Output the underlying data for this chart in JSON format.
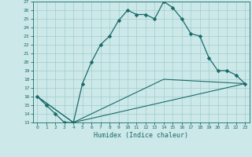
{
  "xlabel": "Humidex (Indice chaleur)",
  "xlim": [
    -0.5,
    23.5
  ],
  "ylim": [
    13,
    27
  ],
  "yticks": [
    13,
    14,
    15,
    16,
    17,
    18,
    19,
    20,
    21,
    22,
    23,
    24,
    25,
    26,
    27
  ],
  "xticks": [
    0,
    1,
    2,
    3,
    4,
    5,
    6,
    7,
    8,
    9,
    10,
    11,
    12,
    13,
    14,
    15,
    16,
    17,
    18,
    19,
    20,
    21,
    22,
    23
  ],
  "background_color": "#cde8e8",
  "grid_color": "#9fcece",
  "line_color": "#1a6b6b",
  "line1_x": [
    0,
    1,
    2,
    3,
    4,
    5,
    6,
    7,
    8,
    9,
    10,
    11,
    12,
    13,
    14,
    15,
    16,
    17,
    18,
    19,
    20,
    21,
    22,
    23
  ],
  "line1_y": [
    16,
    15,
    14,
    13,
    13,
    17.5,
    20,
    22,
    23,
    24.8,
    26,
    25.5,
    25.5,
    25,
    27,
    26.3,
    25,
    23.3,
    23,
    20.5,
    19,
    19,
    18.5,
    17.5
  ],
  "line2_x": [
    0,
    4,
    23
  ],
  "line2_y": [
    16,
    13,
    17.5
  ],
  "line3_x": [
    0,
    4,
    14,
    23
  ],
  "line3_y": [
    16,
    13,
    18,
    17.5
  ]
}
